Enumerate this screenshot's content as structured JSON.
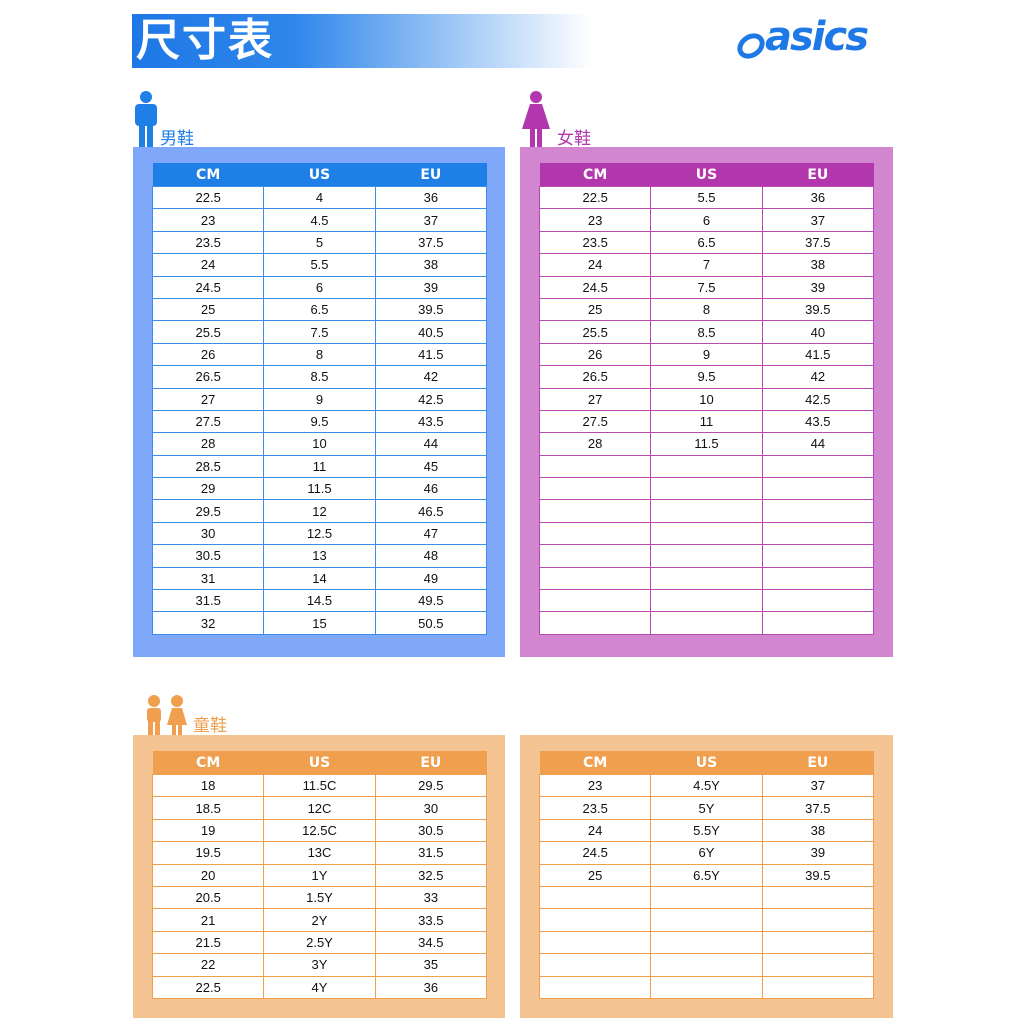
{
  "header": {
    "title": "尺寸表",
    "logo": "asics",
    "brand_color": "#1e78e6"
  },
  "columns": [
    "CM",
    "US",
    "EU"
  ],
  "men": {
    "label": "男鞋",
    "icon": "man-icon",
    "color": "#1e7fe6",
    "panel_color": "#7fa8fb",
    "rows": [
      [
        "22.5",
        "4",
        "36"
      ],
      [
        "23",
        "4.5",
        "37"
      ],
      [
        "23.5",
        "5",
        "37.5"
      ],
      [
        "24",
        "5.5",
        "38"
      ],
      [
        "24.5",
        "6",
        "39"
      ],
      [
        "25",
        "6.5",
        "39.5"
      ],
      [
        "25.5",
        "7.5",
        "40.5"
      ],
      [
        "26",
        "8",
        "41.5"
      ],
      [
        "26.5",
        "8.5",
        "42"
      ],
      [
        "27",
        "9",
        "42.5"
      ],
      [
        "27.5",
        "9.5",
        "43.5"
      ],
      [
        "28",
        "10",
        "44"
      ],
      [
        "28.5",
        "11",
        "45"
      ],
      [
        "29",
        "11.5",
        "46"
      ],
      [
        "29.5",
        "12",
        "46.5"
      ],
      [
        "30",
        "12.5",
        "47"
      ],
      [
        "30.5",
        "13",
        "48"
      ],
      [
        "31",
        "14",
        "49"
      ],
      [
        "31.5",
        "14.5",
        "49.5"
      ],
      [
        "32",
        "15",
        "50.5"
      ]
    ]
  },
  "women": {
    "label": "女鞋",
    "icon": "woman-icon",
    "color": "#b236ac",
    "panel_color": "#d186cf",
    "rows": [
      [
        "22.5",
        "5.5",
        "36"
      ],
      [
        "23",
        "6",
        "37"
      ],
      [
        "23.5",
        "6.5",
        "37.5"
      ],
      [
        "24",
        "7",
        "38"
      ],
      [
        "24.5",
        "7.5",
        "39"
      ],
      [
        "25",
        "8",
        "39.5"
      ],
      [
        "25.5",
        "8.5",
        "40"
      ],
      [
        "26",
        "9",
        "41.5"
      ],
      [
        "26.5",
        "9.5",
        "42"
      ],
      [
        "27",
        "10",
        "42.5"
      ],
      [
        "27.5",
        "11",
        "43.5"
      ],
      [
        "28",
        "11.5",
        "44"
      ],
      [
        "",
        "",
        ""
      ],
      [
        "",
        "",
        ""
      ],
      [
        "",
        "",
        ""
      ],
      [
        "",
        "",
        ""
      ],
      [
        "",
        "",
        ""
      ],
      [
        "",
        "",
        ""
      ],
      [
        "",
        "",
        ""
      ],
      [
        "",
        "",
        ""
      ]
    ]
  },
  "kids": {
    "label": "童鞋",
    "icon": "children-icon",
    "color": "#ef9f4e",
    "panel_color": "#f4c592",
    "rows_left": [
      [
        "18",
        "11.5C",
        "29.5"
      ],
      [
        "18.5",
        "12C",
        "30"
      ],
      [
        "19",
        "12.5C",
        "30.5"
      ],
      [
        "19.5",
        "13C",
        "31.5"
      ],
      [
        "20",
        "1Y",
        "32.5"
      ],
      [
        "20.5",
        "1.5Y",
        "33"
      ],
      [
        "21",
        "2Y",
        "33.5"
      ],
      [
        "21.5",
        "2.5Y",
        "34.5"
      ],
      [
        "22",
        "3Y",
        "35"
      ],
      [
        "22.5",
        "4Y",
        "36"
      ]
    ],
    "rows_right": [
      [
        "23",
        "4.5Y",
        "37"
      ],
      [
        "23.5",
        "5Y",
        "37.5"
      ],
      [
        "24",
        "5.5Y",
        "38"
      ],
      [
        "24.5",
        "6Y",
        "39"
      ],
      [
        "25",
        "6.5Y",
        "39.5"
      ],
      [
        "",
        "",
        ""
      ],
      [
        "",
        "",
        ""
      ],
      [
        "",
        "",
        ""
      ],
      [
        "",
        "",
        ""
      ],
      [
        "",
        "",
        ""
      ]
    ]
  }
}
